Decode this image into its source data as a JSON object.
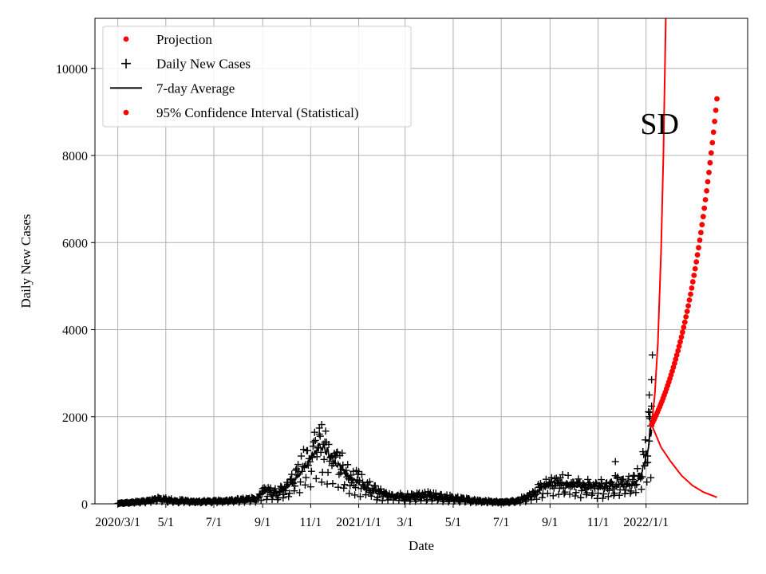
{
  "chart_data": {
    "type": "line",
    "title": "",
    "xlabel": "Date",
    "ylabel": "Daily New Cases",
    "xlim": [
      "2020-02-01",
      "2022-05-10"
    ],
    "ylim": [
      0,
      11150
    ],
    "grid": true,
    "legend_position": "top-left",
    "x_ticks": [
      {
        "date": "2020-03-01",
        "label": "2020/3/1"
      },
      {
        "date": "2020-05-01",
        "label": "5/1"
      },
      {
        "date": "2020-07-01",
        "label": "7/1"
      },
      {
        "date": "2020-09-01",
        "label": "9/1"
      },
      {
        "date": "2020-11-01",
        "label": "11/1"
      },
      {
        "date": "2021-01-01",
        "label": "2021/1/1"
      },
      {
        "date": "2021-03-01",
        "label": "3/1"
      },
      {
        "date": "2021-05-01",
        "label": "5/1"
      },
      {
        "date": "2021-07-01",
        "label": "7/1"
      },
      {
        "date": "2021-09-01",
        "label": "9/1"
      },
      {
        "date": "2021-11-01",
        "label": "11/1"
      },
      {
        "date": "2022-01-01",
        "label": "2022/1/1"
      }
    ],
    "y_ticks": [
      0,
      2000,
      4000,
      6000,
      8000,
      10000
    ],
    "annotation": {
      "text": "SD",
      "date": "2021-12-31",
      "value": 8750
    },
    "colors": {
      "projection": "#ff0000",
      "daily": "#000000",
      "average": "#000000",
      "ci": "#ff0000"
    },
    "legend": [
      {
        "label": "Projection",
        "marker": "dot",
        "color": "#ff0000"
      },
      {
        "label": "Daily New Cases",
        "marker": "plus",
        "color": "#000000"
      },
      {
        "label": "7-day Average",
        "marker": "line",
        "color": "#000000"
      },
      {
        "label": "95% Confidence Interval (Statistical)",
        "marker": "dot",
        "color": "#ff0000"
      }
    ],
    "average_anchors": [
      [
        "2020-03-01",
        10
      ],
      [
        "2020-04-01",
        50
      ],
      [
        "2020-04-20",
        110
      ],
      [
        "2020-05-10",
        70
      ],
      [
        "2020-06-10",
        50
      ],
      [
        "2020-07-10",
        60
      ],
      [
        "2020-08-10",
        90
      ],
      [
        "2020-08-25",
        120
      ],
      [
        "2020-09-01",
        280
      ],
      [
        "2020-09-20",
        240
      ],
      [
        "2020-10-05",
        420
      ],
      [
        "2020-10-20",
        750
      ],
      [
        "2020-11-05",
        1150
      ],
      [
        "2020-11-12",
        1330
      ],
      [
        "2020-11-25",
        1150
      ],
      [
        "2020-12-10",
        800
      ],
      [
        "2020-12-25",
        550
      ],
      [
        "2021-01-10",
        380
      ],
      [
        "2021-01-25",
        250
      ],
      [
        "2021-02-10",
        170
      ],
      [
        "2021-03-01",
        160
      ],
      [
        "2021-04-01",
        180
      ],
      [
        "2021-05-01",
        120
      ],
      [
        "2021-06-01",
        60
      ],
      [
        "2021-07-01",
        40
      ],
      [
        "2021-07-20",
        60
      ],
      [
        "2021-08-10",
        200
      ],
      [
        "2021-08-25",
        400
      ],
      [
        "2021-09-01",
        500
      ],
      [
        "2021-09-20",
        450
      ],
      [
        "2021-10-10",
        400
      ],
      [
        "2021-11-01",
        350
      ],
      [
        "2021-11-25",
        420
      ],
      [
        "2021-12-15",
        450
      ],
      [
        "2021-12-25",
        600
      ],
      [
        "2022-01-03",
        1300
      ],
      [
        "2022-01-08",
        1820
      ]
    ],
    "daily_points": [
      [
        "2022-01-03",
        950
      ],
      [
        "2022-01-05",
        2000
      ],
      [
        "2022-01-05",
        2500
      ],
      [
        "2022-01-06",
        2100
      ],
      [
        "2022-01-08",
        2850
      ],
      [
        "2022-01-09",
        3420
      ],
      [
        "2022-01-07",
        600
      ],
      [
        "2021-11-23",
        970
      ],
      [
        "2020-11-15",
        1820
      ],
      [
        "2020-11-12",
        1600
      ],
      [
        "2020-11-05",
        1420
      ]
    ],
    "projection_upper": [
      [
        "2022-01-08",
        1820
      ],
      [
        "2022-01-12",
        2500
      ],
      [
        "2022-01-16",
        3700
      ],
      [
        "2022-01-20",
        5800
      ],
      [
        "2022-01-23",
        8000
      ],
      [
        "2022-01-26",
        11150
      ]
    ],
    "projection_lower": [
      [
        "2022-01-08",
        1820
      ],
      [
        "2022-01-20",
        1300
      ],
      [
        "2022-02-01",
        980
      ],
      [
        "2022-02-15",
        650
      ],
      [
        "2022-03-01",
        420
      ],
      [
        "2022-03-15",
        270
      ],
      [
        "2022-04-01",
        150
      ]
    ],
    "ci_start": [
      "2022-01-08",
      1820
    ],
    "ci_end": [
      "2022-04-01",
      9300
    ],
    "ci_count": 58
  }
}
